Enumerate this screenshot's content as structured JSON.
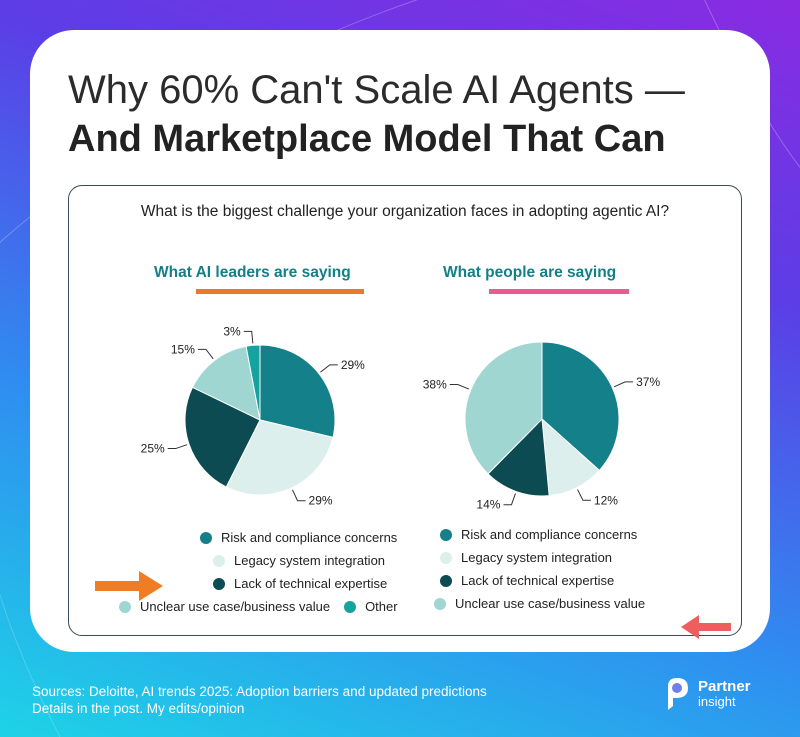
{
  "title": {
    "line1": "Why 60% Can't Scale AI Agents —",
    "line2": "And Marketplace Model That Can"
  },
  "question": "What is the biggest challenge your organization faces in adopting agentic AI?",
  "colors": {
    "risk": "#148089",
    "legacy": "#dcefec",
    "lack": "#0d4b52",
    "unclear": "#9fd6d2",
    "other": "#15a3a0",
    "leaders_underline": "#e8782a",
    "people_underline": "#ea5a93",
    "arrow_orange": "#f07d23",
    "arrow_red": "#ef5e5e"
  },
  "chart_data": [
    {
      "type": "pie",
      "title": "What AI leaders are saying",
      "categories": [
        "Risk and compliance concerns",
        "Legacy system integration",
        "Lack of technical expertise",
        "Unclear use case/business value",
        "Other"
      ],
      "values": [
        29,
        29,
        25,
        15,
        3
      ],
      "labels": [
        "29%",
        "29%",
        "25%",
        "15%",
        "3%"
      ],
      "legend": [
        "Risk and compliance concerns",
        "Legacy system integration",
        "Lack of technical expertise",
        "Unclear use case/business value",
        "Other"
      ]
    },
    {
      "type": "pie",
      "title": "What people are saying",
      "categories": [
        "Risk and compliance concerns",
        "Legacy system integration",
        "Lack of technical expertise",
        "Unclear use case/business value"
      ],
      "values": [
        37,
        12,
        14,
        38
      ],
      "labels": [
        "37%",
        "12%",
        "14%",
        "38%"
      ],
      "legend": [
        "Risk and compliance concerns",
        "Legacy system integration",
        "Lack of technical expertise",
        "Unclear use case/business value"
      ]
    }
  ],
  "footer": {
    "line1": "Sources: Deloitte, AI trends 2025: Adoption barriers and updated predictions",
    "line2": "Details in the post. My edits/opinion"
  },
  "logo": {
    "name": "Partner",
    "tagline": "insight",
    "icon": "partner-insight-logo-icon"
  }
}
